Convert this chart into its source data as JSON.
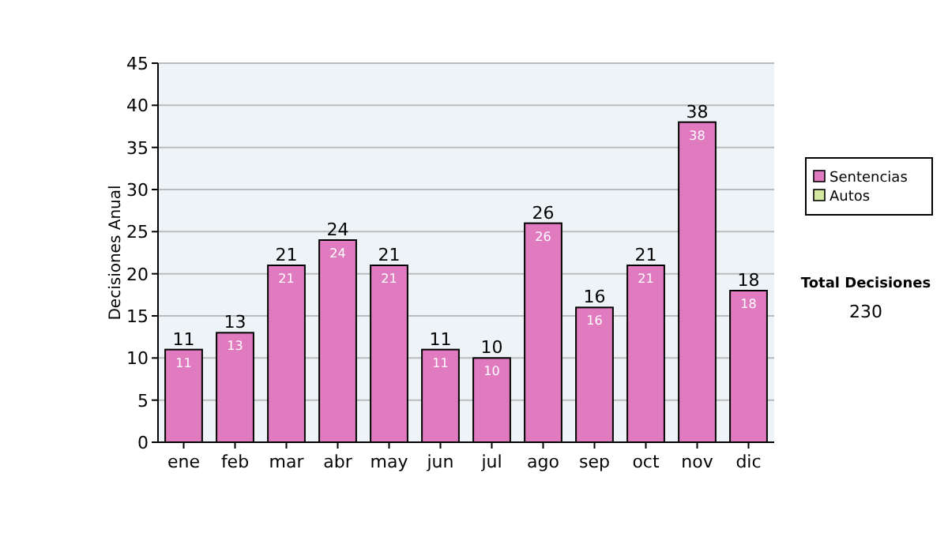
{
  "chart_data": {
    "type": "bar",
    "stacked": true,
    "ylabel": "Decisiones Anual",
    "categories": [
      "ene",
      "feb",
      "mar",
      "abr",
      "may",
      "jun",
      "jul",
      "ago",
      "sep",
      "oct",
      "nov",
      "dic"
    ],
    "series": [
      {
        "name": "Sentencias",
        "color": "#e07bc0",
        "values": [
          11,
          13,
          21,
          24,
          21,
          11,
          10,
          26,
          16,
          21,
          38,
          18
        ],
        "value_labels": [
          "11",
          "13",
          "21",
          "24",
          "21",
          "11",
          "10",
          "26",
          "16",
          "21",
          "38",
          "18"
        ]
      },
      {
        "name": "Autos",
        "color": "#d4e8a0",
        "values": [
          0,
          0,
          0,
          0,
          0,
          0,
          0,
          0,
          0,
          0,
          0,
          0
        ]
      }
    ],
    "totals": [
      "11",
      "13",
      "21",
      "24",
      "21",
      "11",
      "10",
      "26",
      "16",
      "21",
      "38",
      "18"
    ],
    "ylim": [
      0,
      45
    ],
    "yticks": [
      0,
      5,
      10,
      15,
      20,
      25,
      30,
      35,
      40,
      45
    ],
    "grid": "y",
    "legend": "right",
    "annotations": [
      "Total Decisiones",
      "230"
    ]
  }
}
